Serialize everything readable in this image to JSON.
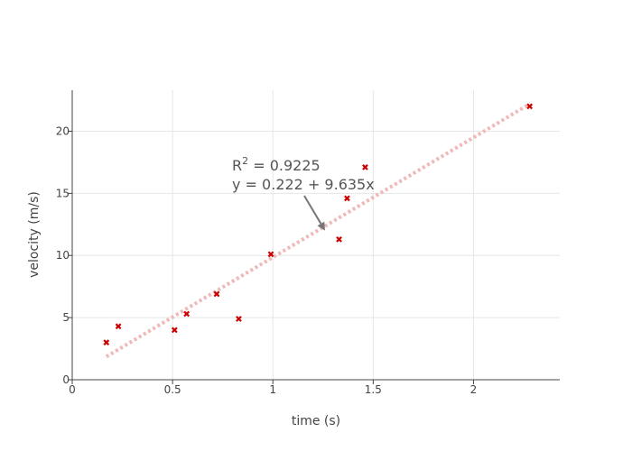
{
  "chart_data": {
    "type": "scatter",
    "title": "",
    "xlabel": "time (s)",
    "ylabel": "velocity (m/s)",
    "xlim": [
      0,
      2.43
    ],
    "ylim": [
      0,
      23.3
    ],
    "x_ticks": [
      0,
      0.5,
      1,
      1.5,
      2
    ],
    "x_tick_labels": [
      "0",
      "0.5",
      "1",
      "1.5",
      "2"
    ],
    "y_ticks": [
      0,
      5,
      10,
      15,
      20
    ],
    "y_tick_labels": [
      "0",
      "5",
      "10",
      "15",
      "20"
    ],
    "grid": true,
    "legend": false,
    "colors": {
      "points": "#cc0000",
      "fit_line": "#f0b8b8",
      "grid": "#e6e6e6",
      "axis": "#444444",
      "arrow": "#777777"
    },
    "series": [
      {
        "marker": "x",
        "x": [
          0.17,
          0.23,
          0.51,
          0.57,
          0.72,
          0.83,
          0.99,
          1.33,
          1.37,
          1.46,
          2.28
        ],
        "y": [
          3.0,
          4.3,
          4.0,
          5.3,
          6.9,
          4.9,
          10.1,
          11.3,
          14.6,
          17.1,
          22.0
        ]
      }
    ],
    "fit": {
      "intercept": 0.222,
      "slope": 9.635,
      "x_range": [
        0.17,
        2.28
      ],
      "style": "dotted"
    },
    "annotation": {
      "r2_base": "R",
      "r2_sup": "2",
      "r2_rest": " = 0.9225",
      "equation": "y = 0.222 + 9.635x",
      "arrow_tip": [
        1.26,
        12.0
      ]
    }
  }
}
